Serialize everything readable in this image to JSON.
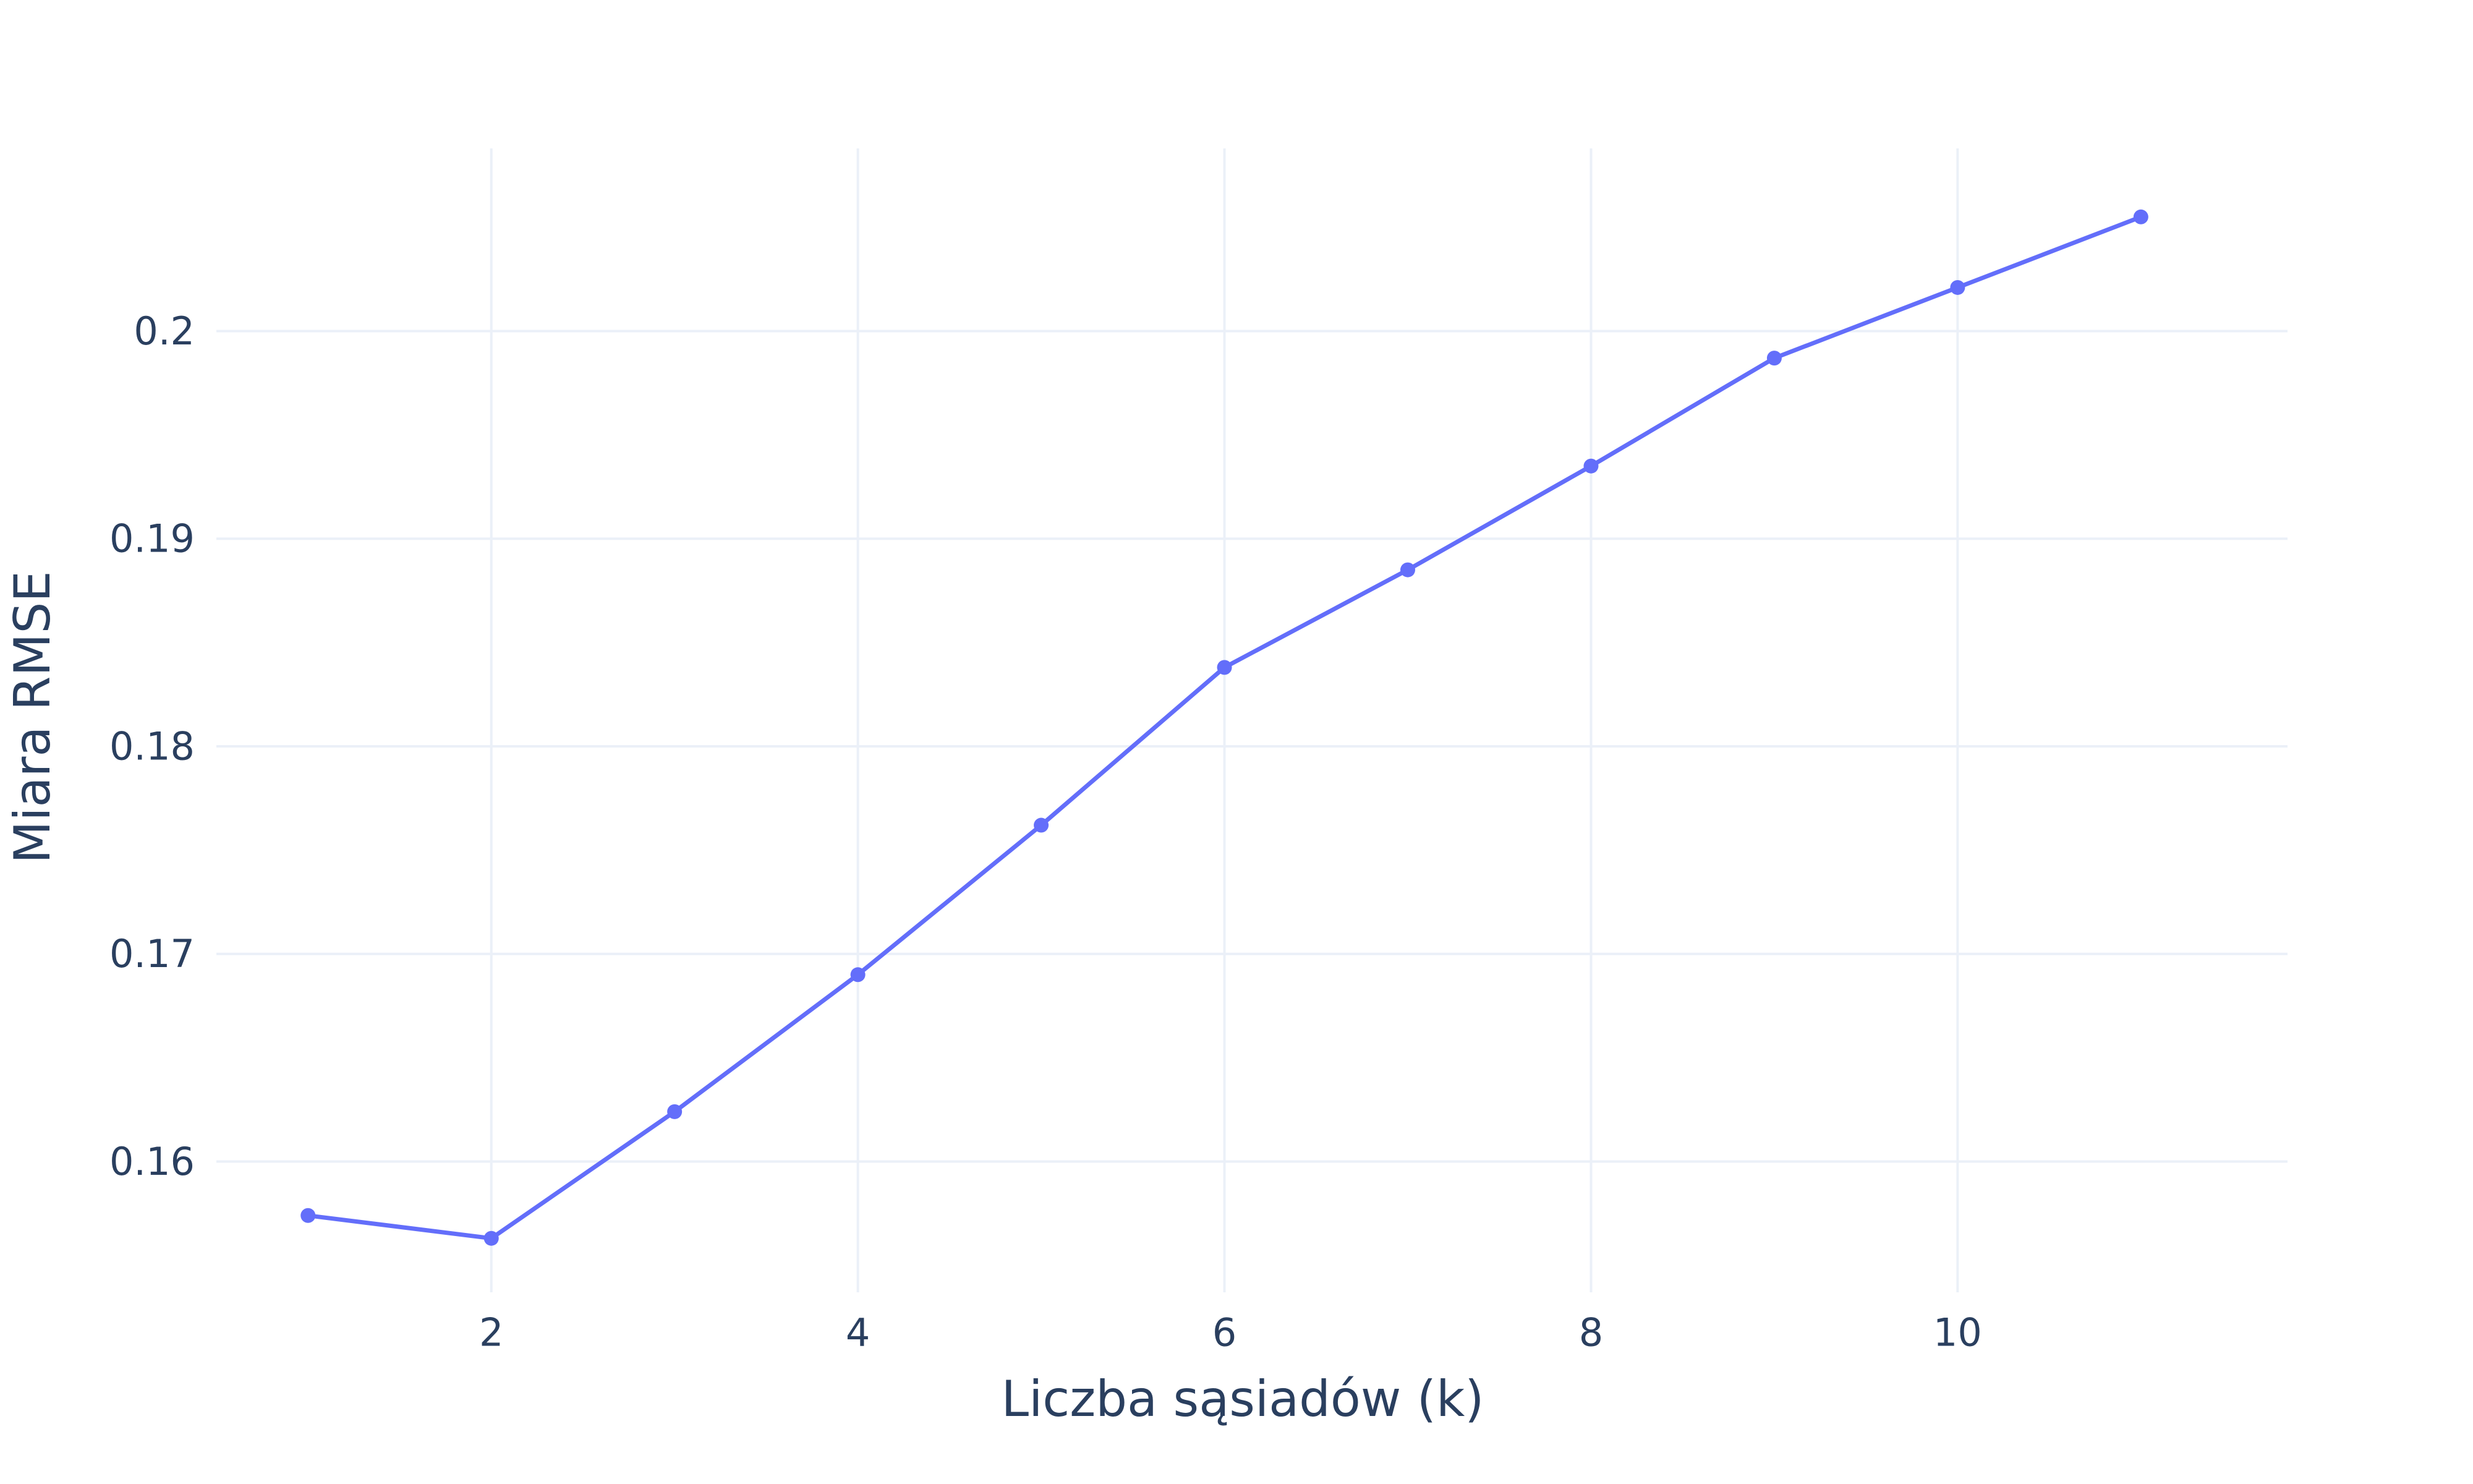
{
  "chart_data": {
    "type": "line",
    "title": "",
    "xlabel": "Liczba sąsiadów (k)",
    "ylabel": "Miara RMSE",
    "x": [
      1,
      2,
      3,
      4,
      5,
      6,
      7,
      8,
      9,
      10,
      11
    ],
    "series": [
      {
        "values": [
          0.1574,
          0.1563,
          0.1624,
          0.169,
          0.1762,
          0.1838,
          0.1885,
          0.1935,
          0.1987,
          0.2021,
          0.2055
        ]
      }
    ],
    "xlim": [
      0.5,
      11.8
    ],
    "ylim": [
      0.1537,
      0.2088
    ],
    "xticks": [
      2,
      4,
      6,
      8,
      10
    ],
    "xtick_labels": [
      "2",
      "4",
      "6",
      "8",
      "10"
    ],
    "yticks": [
      0.16,
      0.17,
      0.18,
      0.19,
      0.2
    ],
    "ytick_labels": [
      "0.16",
      "0.17",
      "0.18",
      "0.19",
      "0.2"
    ],
    "grid": true,
    "legend": "none",
    "colors": {
      "line": "#636efa",
      "grid": "#ebf0f8",
      "text": "#2a3f5f",
      "background": "#ffffff"
    }
  }
}
